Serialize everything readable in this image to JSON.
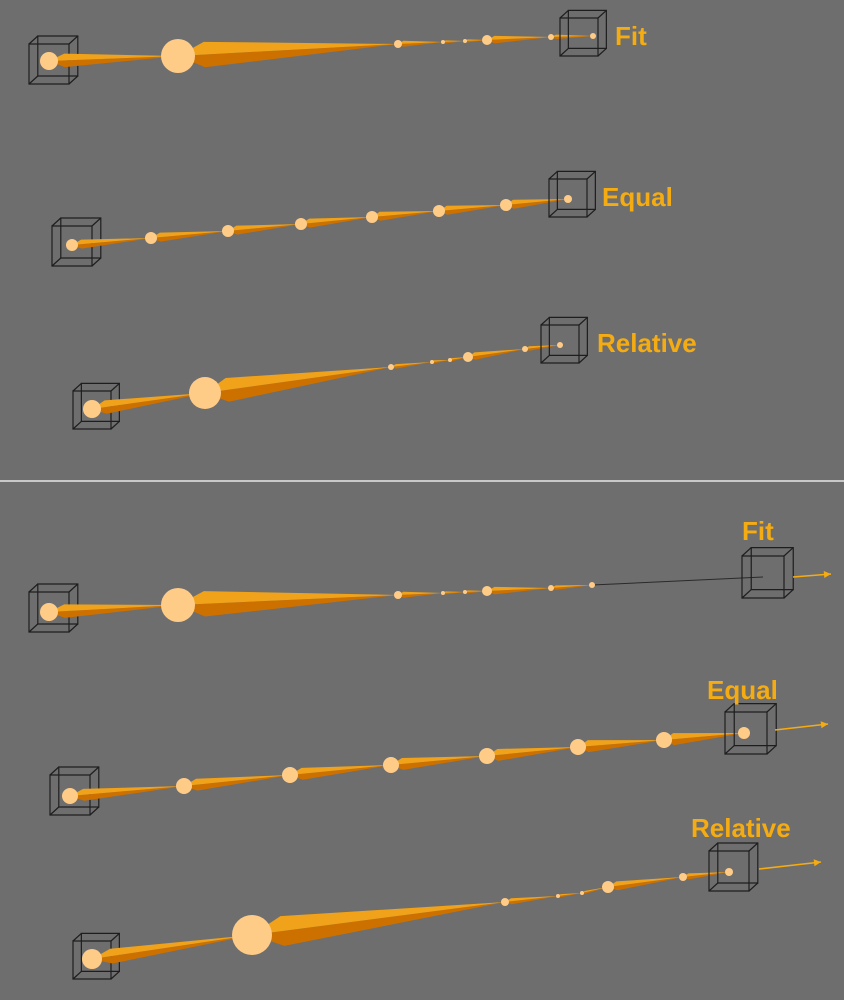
{
  "colors": {
    "background": "#6e6e6e",
    "divider": "#c8c8c8",
    "bone_dark": "#cc7000",
    "bone_light": "#f0a21a",
    "joint": "#ffcc88",
    "cube_stroke": "#1e1e1e",
    "label": "#f5ac12",
    "arrow": "#f5ac12"
  },
  "panels": [
    {
      "section": "top",
      "label": "Fit",
      "has_arrow": false
    },
    {
      "section": "top",
      "label": "Equal",
      "has_arrow": false
    },
    {
      "section": "top",
      "label": "Relative",
      "has_arrow": false
    },
    {
      "section": "bottom",
      "label": "Fit",
      "has_arrow": true
    },
    {
      "section": "bottom",
      "label": "Equal",
      "has_arrow": true
    },
    {
      "section": "bottom",
      "label": "Relative",
      "has_arrow": true
    }
  ]
}
